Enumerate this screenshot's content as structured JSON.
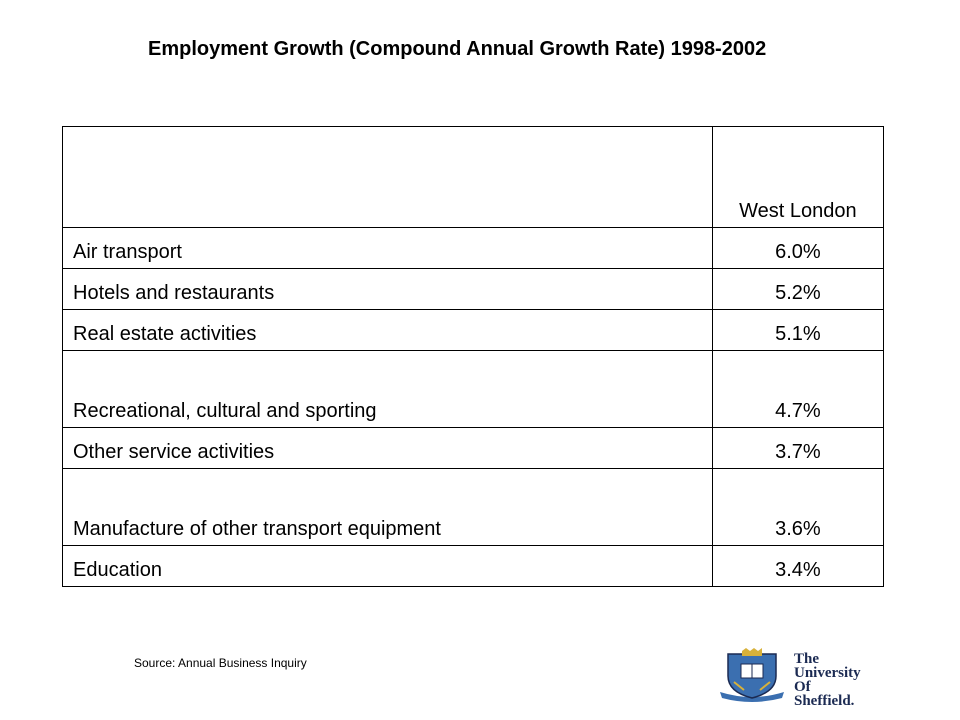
{
  "title": "Employment Growth (Compound Annual Growth Rate) 1998-2002",
  "table": {
    "header": {
      "name": "",
      "value": "West London"
    },
    "rows": [
      {
        "name": "Air transport",
        "value": "6.0%"
      },
      {
        "name": "Hotels and restaurants",
        "value": "5.2%"
      },
      {
        "name": "Real estate activities",
        "value": "5.1%"
      },
      {
        "name": "Recreational, cultural and sporting",
        "value": "4.7%"
      },
      {
        "name": "Other service activities",
        "value": "3.7%"
      },
      {
        "name": "Manufacture of other transport equipment",
        "value": "3.6%"
      },
      {
        "name": "Education",
        "value": "3.4%"
      }
    ]
  },
  "source": "Source: Annual Business Inquiry",
  "logo": {
    "line1": "The",
    "line2": "University",
    "line3": "Of",
    "line4": "Sheffield.",
    "icon": "university-crest-icon",
    "colors": {
      "navy": "#1b2a52",
      "blue": "#3b6fb0",
      "gold": "#d8b13a"
    }
  }
}
